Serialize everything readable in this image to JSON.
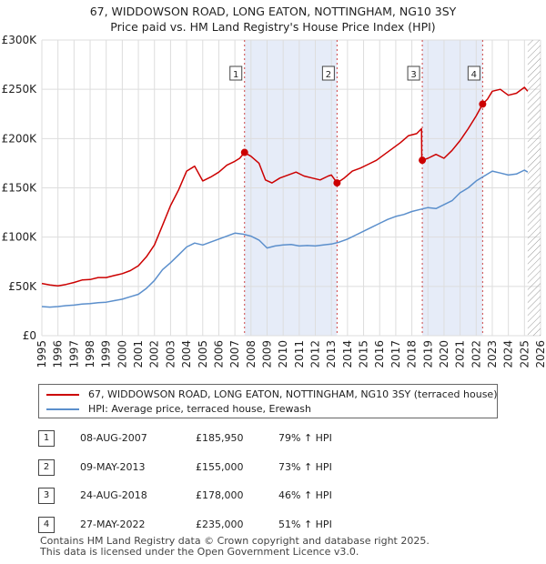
{
  "title": {
    "line1": "67, WIDDOWSON ROAD, LONG EATON, NOTTINGHAM, NG10 3SY",
    "line2": "Price paid vs. HM Land Registry's House Price Index (HPI)"
  },
  "chart_data": {
    "type": "line",
    "title": "67, WIDDOWSON ROAD, LONG EATON, NOTTINGHAM, NG10 3SY — Price paid vs. HM Land Registry's House Price Index (HPI)",
    "xlabel": "",
    "ylabel": "",
    "xlim": [
      1995,
      2026
    ],
    "ylim": [
      0,
      300000
    ],
    "y_ticks": [
      {
        "value": 0,
        "label": "£0"
      },
      {
        "value": 50000,
        "label": "£50K"
      },
      {
        "value": 100000,
        "label": "£100K"
      },
      {
        "value": 150000,
        "label": "£150K"
      },
      {
        "value": 200000,
        "label": "£200K"
      },
      {
        "value": 250000,
        "label": "£250K"
      },
      {
        "value": 300000,
        "label": "£300K"
      }
    ],
    "x_ticks": [
      "1995",
      "1996",
      "1997",
      "1998",
      "1999",
      "2000",
      "2001",
      "2002",
      "2003",
      "2004",
      "2005",
      "2006",
      "2007",
      "2008",
      "2009",
      "2010",
      "2011",
      "2012",
      "2013",
      "2014",
      "2015",
      "2016",
      "2017",
      "2018",
      "2019",
      "2020",
      "2021",
      "2022",
      "2023",
      "2024",
      "2025",
      "2026"
    ],
    "grid": true,
    "colors": {
      "price_paid": "#cc0000",
      "hpi": "#5b8fcc",
      "shade": "#e6ecf8",
      "grid": "#dddddd",
      "marker_line": "#cc4444",
      "hatch": "#999999"
    },
    "highlight_ranges": [
      [
        2007.6,
        2013.35
      ],
      [
        2018.65,
        2022.4
      ]
    ],
    "future_hatch_from": 2025.2,
    "series": [
      {
        "name": "67, WIDDOWSON ROAD, LONG EATON, NOTTINGHAM, NG10 3SY (terraced house)",
        "color": "#cc0000",
        "x": [
          1995.0,
          1995.5,
          1996.0,
          1996.5,
          1997.0,
          1997.5,
          1998.0,
          1998.5,
          1999.0,
          1999.5,
          2000.0,
          2000.5,
          2001.0,
          2001.5,
          2002.0,
          2002.5,
          2003.0,
          2003.5,
          2004.0,
          2004.5,
          2005.0,
          2005.5,
          2006.0,
          2006.5,
          2007.0,
          2007.3,
          2007.6,
          2008.0,
          2008.5,
          2008.9,
          2009.3,
          2009.8,
          2010.3,
          2010.8,
          2011.3,
          2011.8,
          2012.3,
          2012.8,
          2013.0,
          2013.35,
          2013.8,
          2014.3,
          2014.8,
          2015.3,
          2015.8,
          2016.3,
          2016.8,
          2017.3,
          2017.8,
          2018.3,
          2018.6,
          2018.62,
          2018.65,
          2019.0,
          2019.5,
          2020.0,
          2020.5,
          2021.0,
          2021.5,
          2022.0,
          2022.4,
          2022.7,
          2023.0,
          2023.5,
          2024.0,
          2024.5,
          2025.0,
          2025.2
        ],
        "values": [
          53000,
          51500,
          50500,
          52000,
          54000,
          56500,
          57000,
          59000,
          59000,
          61000,
          63000,
          66000,
          71000,
          80000,
          92000,
          112000,
          132000,
          148000,
          167000,
          172000,
          157000,
          161000,
          166000,
          173000,
          177000,
          180000,
          185950,
          182000,
          175000,
          158000,
          155000,
          160000,
          163000,
          166000,
          162000,
          160000,
          158000,
          162000,
          163000,
          155000,
          160000,
          167000,
          170000,
          174000,
          178000,
          184000,
          190000,
          196000,
          203000,
          205000,
          210000,
          178000,
          178000,
          180000,
          184000,
          180000,
          188000,
          198000,
          210000,
          223000,
          235000,
          240000,
          248000,
          250000,
          244000,
          246000,
          252000,
          248000
        ]
      },
      {
        "name": "HPI: Average price, terraced house, Erewash",
        "color": "#5b8fcc",
        "x": [
          1995.0,
          1995.5,
          1996.0,
          1996.5,
          1997.0,
          1997.5,
          1998.0,
          1998.5,
          1999.0,
          1999.5,
          2000.0,
          2000.5,
          2001.0,
          2001.5,
          2002.0,
          2002.5,
          2003.0,
          2003.5,
          2004.0,
          2004.5,
          2005.0,
          2005.5,
          2006.0,
          2006.5,
          2007.0,
          2007.5,
          2008.0,
          2008.5,
          2009.0,
          2009.5,
          2010.0,
          2010.5,
          2011.0,
          2011.5,
          2012.0,
          2012.5,
          2013.0,
          2013.5,
          2014.0,
          2014.5,
          2015.0,
          2015.5,
          2016.0,
          2016.5,
          2017.0,
          2017.5,
          2018.0,
          2018.5,
          2019.0,
          2019.5,
          2020.0,
          2020.5,
          2021.0,
          2021.5,
          2022.0,
          2022.5,
          2023.0,
          2023.5,
          2024.0,
          2024.5,
          2025.0,
          2025.2
        ],
        "values": [
          29500,
          29000,
          29500,
          30500,
          31000,
          32000,
          32500,
          33500,
          34000,
          35500,
          37000,
          39500,
          42000,
          48000,
          56000,
          67000,
          74000,
          82000,
          90000,
          94000,
          92000,
          95000,
          98000,
          101000,
          104000,
          103000,
          101000,
          97000,
          89000,
          91000,
          92000,
          92500,
          91000,
          91500,
          91000,
          92000,
          93000,
          95000,
          98000,
          102000,
          106000,
          110000,
          114000,
          118000,
          121000,
          123000,
          126000,
          128000,
          130000,
          129000,
          133000,
          137000,
          145000,
          150000,
          157000,
          162000,
          167000,
          165000,
          163000,
          164000,
          168000,
          166000
        ]
      }
    ],
    "sale_points": [
      {
        "label": "1",
        "x": 2007.6,
        "value": 185950
      },
      {
        "label": "2",
        "x": 2013.35,
        "value": 155000
      },
      {
        "label": "3",
        "x": 2018.65,
        "value": 178000
      },
      {
        "label": "4",
        "x": 2022.4,
        "value": 235000
      }
    ]
  },
  "legend": {
    "price_paid": "67, WIDDOWSON ROAD, LONG EATON, NOTTINGHAM, NG10 3SY (terraced house)",
    "hpi": "HPI: Average price, terraced house, Erewash"
  },
  "sales": [
    {
      "num": "1",
      "date": "08-AUG-2007",
      "price": "£185,950",
      "hpi": "79% ↑ HPI"
    },
    {
      "num": "2",
      "date": "09-MAY-2013",
      "price": "£155,000",
      "hpi": "73% ↑ HPI"
    },
    {
      "num": "3",
      "date": "24-AUG-2018",
      "price": "£178,000",
      "hpi": "46% ↑ HPI"
    },
    {
      "num": "4",
      "date": "27-MAY-2022",
      "price": "£235,000",
      "hpi": "51% ↑ HPI"
    }
  ],
  "footer": {
    "line1": "Contains HM Land Registry data © Crown copyright and database right 2025.",
    "line2": "This data is licensed under the Open Government Licence v3.0."
  }
}
